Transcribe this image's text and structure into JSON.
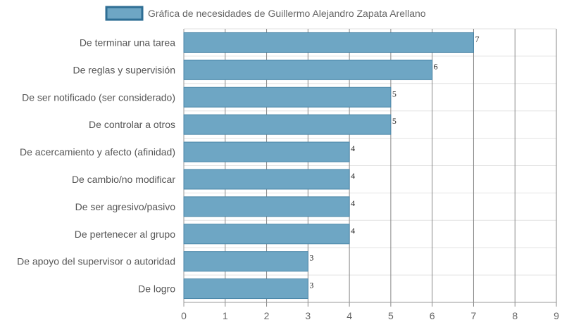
{
  "chart_data": {
    "type": "bar",
    "orientation": "horizontal",
    "title": "",
    "xlabel": "",
    "ylabel": "",
    "categories": [
      "De terminar una tarea",
      "De reglas y supervisión",
      "De ser notificado (ser considerado)",
      "De controlar a otros",
      "De acercamiento y afecto (afinidad)",
      "De cambio/no modificar",
      "De ser agresivo/pasivo",
      "De pertenecer al grupo",
      "De apoyo del supervisor o autoridad",
      "De logro"
    ],
    "series": [
      {
        "name": "Gráfica de necesidades de Guillermo Alejandro Zapata Arellano",
        "values": [
          7,
          6,
          5,
          5,
          4,
          4,
          4,
          4,
          3,
          3
        ]
      }
    ],
    "xlim": [
      0,
      9
    ],
    "x_ticks": [
      "0",
      "1",
      "2",
      "3",
      "4",
      "5",
      "6",
      "7",
      "8",
      "9"
    ],
    "grid": true,
    "legend_position": "top",
    "bar_color": "#6ea6c4",
    "bar_border_color": "#2e6e94",
    "show_data_labels": true
  }
}
